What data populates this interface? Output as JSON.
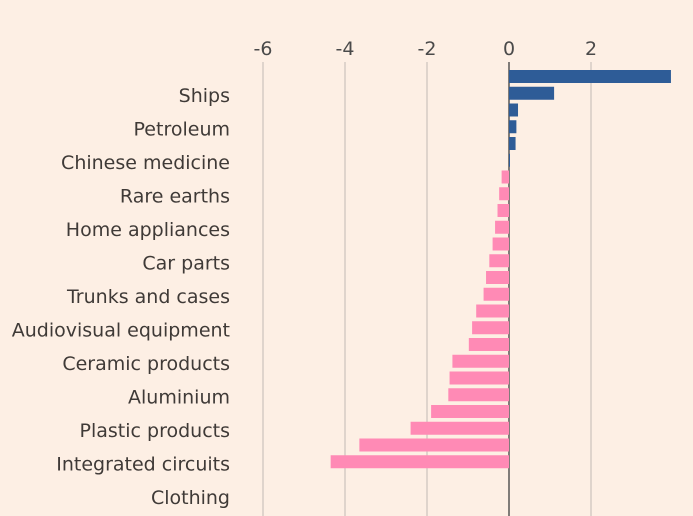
{
  "chart_data": {
    "type": "bar",
    "orientation": "horizontal",
    "xlim": [
      -7.1,
      3.9
    ],
    "xticks": [
      -6,
      -4,
      -2,
      0,
      2
    ],
    "tick_labels": [
      "-6",
      "-4",
      "-2",
      "0",
      "2"
    ],
    "grid": true,
    "labeled_categories": [
      "Ships",
      "Petroleum",
      "Chinese medicine",
      "Rare earths",
      "Home appliances",
      "Car parts",
      "Trunks and cases",
      "Audiovisual equipment",
      "Ceramic products",
      "Aluminium",
      "Plastic products",
      "Integrated circuits",
      "Clothing"
    ],
    "values": [
      3.95,
      1.1,
      0.22,
      0.18,
      0.16,
      0.01,
      -0.18,
      -0.24,
      -0.28,
      -0.34,
      -0.4,
      -0.48,
      -0.56,
      -0.62,
      -0.8,
      -0.9,
      -0.98,
      -1.38,
      -1.45,
      -1.48,
      -1.9,
      -2.4,
      -3.65,
      -4.35
    ],
    "colors": {
      "positive": "#2e5c97",
      "negative": "#ff8ab5"
    }
  },
  "colors": {
    "background": "#fdefe4",
    "gridline": "#cbc3bd",
    "zeroline": "#4b4b4b",
    "text": "#3f3a37"
  }
}
